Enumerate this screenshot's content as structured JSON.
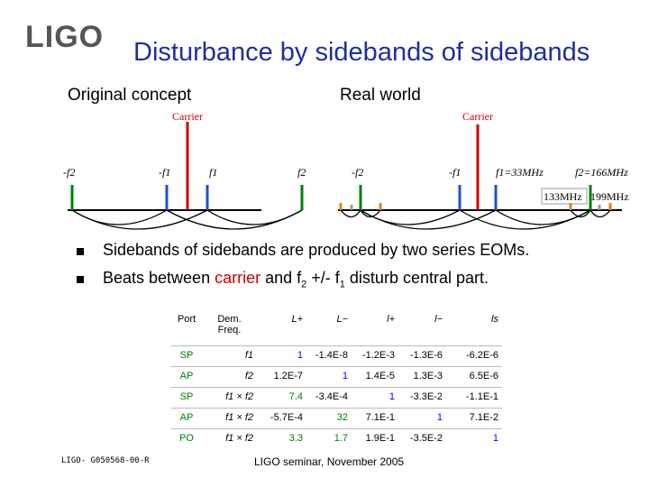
{
  "header": {
    "logo": "LIGO",
    "title": "Disturbance by sidebands of sidebands"
  },
  "left": {
    "heading": "Original concept",
    "carrier": "Carrier",
    "labels": [
      "-f2",
      "-f1",
      "f1",
      "f2"
    ]
  },
  "right": {
    "heading": "Real world",
    "carrier": "Carrier",
    "labels": [
      "-f2",
      "-f1",
      "f1=33MHz",
      "f2=166MHz"
    ],
    "beat_labels": [
      "133MHz",
      "199MHz"
    ]
  },
  "bullets": [
    {
      "parts": [
        "Sidebands of sidebands are produced by two series EOMs."
      ]
    },
    {
      "parts": [
        "Beats between ",
        "carrier",
        " and f",
        "2",
        " +/- f",
        "1",
        " disturb central part."
      ]
    }
  ],
  "table": {
    "header": [
      "Port",
      "Dem. Freq.",
      "L+",
      "L−",
      "l+",
      "l−",
      "ls"
    ],
    "rows": [
      [
        "SP",
        "f1",
        "1",
        "-1.4E-8",
        "-1.2E-3",
        "-1.3E-6",
        "-6.2E-6"
      ],
      [
        "AP",
        "f2",
        "1.2E-7",
        "1",
        "1.4E-5",
        "1.3E-3",
        "6.5E-6"
      ],
      [
        "SP",
        "f1 × f2",
        "7.4",
        "-3.4E-4",
        "1",
        "-3.3E-2",
        "-1.1E-1"
      ],
      [
        "AP",
        "f1 × f2",
        "-5.7E-4",
        "32",
        "7.1E-1",
        "1",
        "7.1E-2"
      ],
      [
        "PO",
        "f1 × f2",
        "3.3",
        "1.7",
        "1.9E-1",
        "-3.5E-2",
        "1"
      ]
    ],
    "colors": [
      [
        "#008000",
        "#000000",
        "#0000ff",
        "#000000",
        "#000000",
        "#000000",
        "#000000"
      ],
      [
        "#008000",
        "#000000",
        "#000000",
        "#0000ff",
        "#000000",
        "#000000",
        "#000000"
      ],
      [
        "#008000",
        "#000000",
        "#008000",
        "#000000",
        "#0000ff",
        "#000000",
        "#000000"
      ],
      [
        "#008000",
        "#000000",
        "#000000",
        "#008000",
        "#000000",
        "#0000ff",
        "#000000"
      ],
      [
        "#008000",
        "#000000",
        "#008000",
        "#008000",
        "#000000",
        "#000000",
        "#0000ff"
      ]
    ]
  },
  "footer": {
    "doc_id": "LIGO- G050568-00-R",
    "event": "LIGO seminar, November 2005"
  }
}
